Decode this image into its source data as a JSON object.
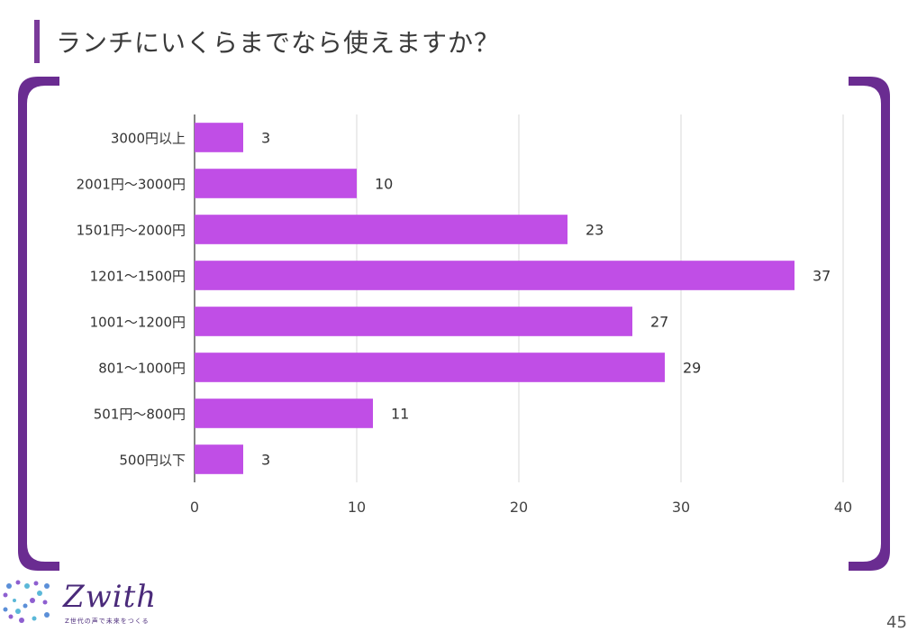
{
  "header": {
    "title": "ランチにいくらまでなら使えますか？"
  },
  "footer": {
    "logo_text": "Zwith",
    "logo_tagline": "Z世代の声で未来をつくる",
    "page_number": "45"
  },
  "colors": {
    "accent": "#7a3a9a",
    "bar": "#c04ee6",
    "frame": "#6a2c91"
  },
  "chart_data": {
    "type": "bar",
    "orientation": "horizontal",
    "categories": [
      "3000円以上",
      "2001円〜3000円",
      "1501円〜2000円",
      "1201〜1500円",
      "1001〜1200円",
      "801〜1000円",
      "501円〜800円",
      "500円以下"
    ],
    "values": [
      3,
      10,
      23,
      37,
      27,
      29,
      11,
      3
    ],
    "data_labels": [
      "3",
      "10",
      "23",
      "37",
      "27",
      "29",
      "11",
      "3"
    ],
    "xlim": [
      0,
      40
    ],
    "x_ticks": [
      0,
      10,
      20,
      30,
      40
    ],
    "x_tick_labels": [
      "0",
      "10",
      "20",
      "30",
      "40"
    ],
    "grid": true,
    "title": "",
    "xlabel": "",
    "ylabel": ""
  }
}
